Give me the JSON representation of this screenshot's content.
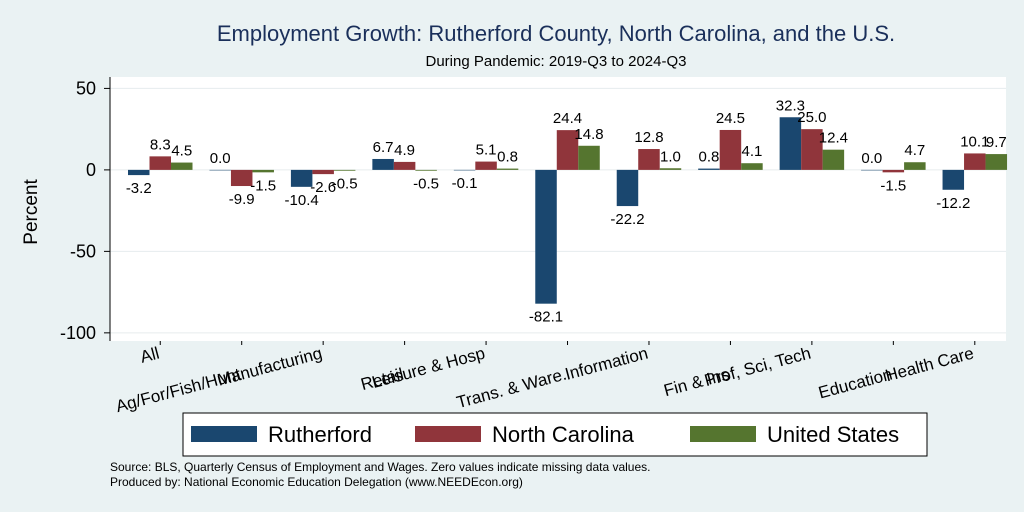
{
  "chart_data": {
    "type": "bar",
    "title": "Employment Growth: Rutherford County, North Carolina, and the U.S.",
    "subtitle": "During Pandemic: 2019-Q3 to 2024-Q3",
    "xlabel": "",
    "ylabel": "Percent",
    "ylim": [
      -105,
      57
    ],
    "yticks": [
      50,
      0,
      -50,
      -100
    ],
    "grid": true,
    "legend_position": "bottom",
    "categories": [
      "All",
      "Ag/For/Fish/Hunt",
      "Manufacturing",
      "Retail",
      "Leisure & Hosp",
      "Trans. & Ware.",
      "Information",
      "Fin & Ins",
      "Prof, Sci, Tech",
      "Education",
      "Health Care"
    ],
    "series": [
      {
        "name": "Rutherford",
        "color": "#1a476f",
        "values": [
          -3.2,
          0.0,
          -10.4,
          6.7,
          -0.1,
          -82.1,
          -22.2,
          0.8,
          32.3,
          0.0,
          -12.2
        ]
      },
      {
        "name": "North Carolina",
        "color": "#90353b",
        "values": [
          8.3,
          -9.9,
          -2.6,
          4.9,
          5.1,
          24.4,
          12.8,
          24.5,
          25.0,
          -1.5,
          10.1
        ]
      },
      {
        "name": "United States",
        "color": "#55752f",
        "values": [
          4.5,
          -1.5,
          -0.5,
          -0.5,
          0.8,
          14.8,
          1.0,
          4.1,
          12.4,
          4.7,
          9.7
        ]
      }
    ],
    "value_labels": [
      [
        "-3.2",
        "0.0",
        "-10.4",
        "6.7",
        "-0.1",
        "-82.1",
        "-22.2",
        "0.8",
        "32.3",
        "0.0",
        "-12.2"
      ],
      [
        "8.3",
        "-9.9",
        "-2.6",
        "4.9",
        "5.1",
        "24.4",
        "12.8",
        "24.5",
        "25.0",
        "-1.5",
        "10.1"
      ],
      [
        "4.5",
        "-1.5",
        "-0.5",
        "-0.5",
        "0.8",
        "14.8",
        "1.0",
        "4.1",
        "12.4",
        "4.7",
        "9.7"
      ]
    ],
    "notes": [
      "Source: BLS, Quarterly Census of Employment and Wages. Zero values indicate missing data values.",
      "Produced by: National Economic Education Delegation (www.NEEDEcon.org)"
    ]
  }
}
